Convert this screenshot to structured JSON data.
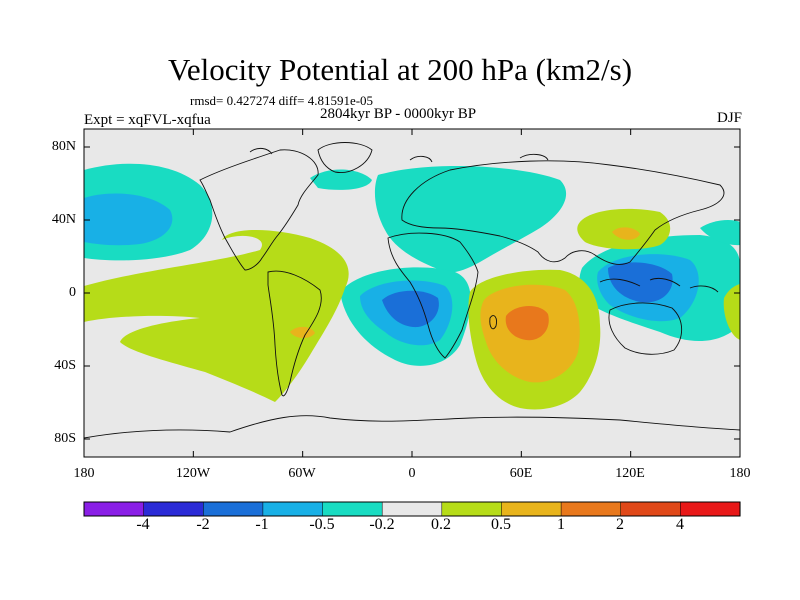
{
  "title": "Velocity Potential at 200 hPa (km2/s)",
  "stats_line": "rmsd= 0.427274 diff= 4.81591e-05",
  "period_line": "2804kyr BP - 0000kyr BP",
  "experiment_label": "Expt = xqFVL-xqfua",
  "season": "DJF",
  "lat_labels": [
    "80N",
    "40N",
    "0",
    "40S",
    "80S"
  ],
  "lon_labels": [
    "180",
    "120W",
    "60W",
    "0",
    "60E",
    "120E",
    "180"
  ],
  "colorbar": {
    "levels": [
      "-4",
      "-2",
      "-1",
      "-0.5",
      "-0.2",
      "0.2",
      "0.5",
      "1",
      "2",
      "4"
    ],
    "colors": [
      "#8a1fe6",
      "#2b2bd6",
      "#1a6fd8",
      "#18b0e6",
      "#19dcc2",
      "#e8e8e8",
      "#b6dc18",
      "#e8b41c",
      "#e8781c",
      "#e04818",
      "#e81818"
    ]
  },
  "palette": {
    "neutral": "#e8e8e8",
    "neg_weak": "#19dcc2",
    "neg_mid": "#18b0e6",
    "neg_strong": "#1a6fd8",
    "pos_weak": "#b6dc18",
    "pos_mid": "#e8b41c",
    "pos_strong": "#e8781c"
  }
}
